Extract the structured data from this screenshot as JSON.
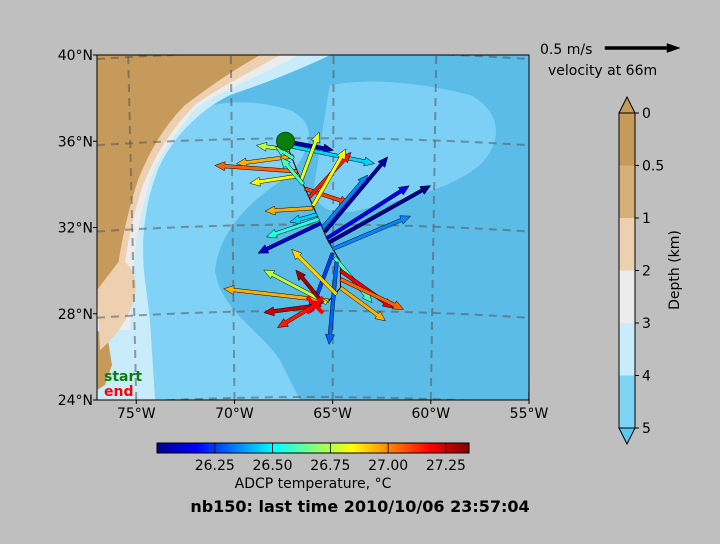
{
  "chart_data": {
    "type": "map-quiver",
    "title": "nb150: last time 2010/10/06 23:57:04",
    "map": {
      "lon_range": [
        -77,
        -55
      ],
      "lat_range": [
        24,
        40
      ],
      "x_ticks": [
        {
          "value": -75,
          "label": "75°W"
        },
        {
          "value": -70,
          "label": "70°W"
        },
        {
          "value": -65,
          "label": "65°W"
        },
        {
          "value": -60,
          "label": "60°W"
        },
        {
          "value": -55,
          "label": "55°W"
        }
      ],
      "y_ticks": [
        {
          "value": 24,
          "label": "24°N"
        },
        {
          "value": 28,
          "label": "28°N"
        },
        {
          "value": 32,
          "label": "32°N"
        },
        {
          "value": 36,
          "label": "36°N"
        },
        {
          "value": 40,
          "label": "40°N"
        }
      ],
      "graticule": "dashed"
    },
    "legend": {
      "start_label": "start",
      "end_label": "end",
      "start_color": "#0a7d0a",
      "end_color": "#ff0000",
      "placement": "bottom-left"
    },
    "reference_arrow": {
      "speed_label": "0.5 m/s",
      "depth_label": "velocity at 66m",
      "speed_m_s": 0.5
    },
    "depth_colorbar": {
      "label": "Depth (km)",
      "ticks": [
        "0",
        "0.5",
        "1",
        "2",
        "3",
        "4",
        "5"
      ],
      "colors": [
        "#c69a5a",
        "#d6ae78",
        "#ecd0b0",
        "#ececec",
        "#c9ecfb",
        "#7ed3f5"
      ]
    },
    "temperature_colorbar": {
      "label": "ADCP temperature, °C",
      "range": [
        26.0,
        27.35
      ],
      "ticks": [
        "26.25",
        "26.50",
        "26.75",
        "27.00",
        "27.25"
      ]
    },
    "start": {
      "lon": -67.4,
      "lat": 36.0
    },
    "end": {
      "lon": -65.9,
      "lat": 28.4
    },
    "track": [
      [
        -67.4,
        36.0
      ],
      [
        -66.8,
        34.6
      ],
      [
        -66.0,
        33.0
      ],
      [
        -65.3,
        31.5
      ],
      [
        -64.6,
        30.4
      ],
      [
        -64.6,
        29.2
      ],
      [
        -65.2,
        28.6
      ],
      [
        -65.9,
        28.4
      ]
    ],
    "vectors": [
      {
        "lon": -67.4,
        "lat": 36.0,
        "u": 0.32,
        "v": -0.06,
        "t": 26.05
      },
      {
        "lon": -67.3,
        "lat": 35.8,
        "u": 0.58,
        "v": -0.12,
        "t": 26.45
      },
      {
        "lon": -67.2,
        "lat": 35.6,
        "u": -0.22,
        "v": 0.03,
        "t": 26.75
      },
      {
        "lon": -67.0,
        "lat": 35.3,
        "u": -0.38,
        "v": -0.05,
        "t": 26.95
      },
      {
        "lon": -67.0,
        "lat": 35.2,
        "u": -0.12,
        "v": 0.08,
        "t": 26.6
      },
      {
        "lon": -66.8,
        "lat": 34.6,
        "u": -0.55,
        "v": 0.04,
        "t": 27.05
      },
      {
        "lon": -66.7,
        "lat": 34.4,
        "u": -0.33,
        "v": -0.05,
        "t": 26.85
      },
      {
        "lon": -66.6,
        "lat": 34.2,
        "u": 0.12,
        "v": 0.32,
        "t": 26.8
      },
      {
        "lon": -66.5,
        "lat": 34.0,
        "u": -0.15,
        "v": 0.18,
        "t": 26.6
      },
      {
        "lon": -66.4,
        "lat": 33.8,
        "u": 0.3,
        "v": -0.1,
        "t": 27.1
      },
      {
        "lon": -66.2,
        "lat": 33.4,
        "u": 0.28,
        "v": 0.3,
        "t": 27.15
      },
      {
        "lon": -66.0,
        "lat": 33.0,
        "u": 0.22,
        "v": 0.38,
        "t": 26.85
      },
      {
        "lon": -66.0,
        "lat": 32.9,
        "u": -0.32,
        "v": -0.02,
        "t": 26.95
      },
      {
        "lon": -65.8,
        "lat": 32.6,
        "u": -0.18,
        "v": -0.05,
        "t": 26.45
      },
      {
        "lon": -65.7,
        "lat": 32.4,
        "u": -0.35,
        "v": -0.12,
        "t": 26.55
      },
      {
        "lon": -65.6,
        "lat": 32.2,
        "u": -0.42,
        "v": -0.2,
        "t": 26.1
      },
      {
        "lon": -65.5,
        "lat": 32.0,
        "u": 0.3,
        "v": 0.35,
        "t": 26.35
      },
      {
        "lon": -65.4,
        "lat": 31.8,
        "u": 0.42,
        "v": 0.5,
        "t": 26.05
      },
      {
        "lon": -65.3,
        "lat": 31.5,
        "u": 0.55,
        "v": 0.35,
        "t": 26.15
      },
      {
        "lon": -65.2,
        "lat": 31.3,
        "u": 0.68,
        "v": 0.38,
        "t": 26.02
      },
      {
        "lon": -65.0,
        "lat": 31.0,
        "u": 0.52,
        "v": 0.22,
        "t": 26.35
      },
      {
        "lon": -65.0,
        "lat": 30.8,
        "u": -0.15,
        "v": -0.4,
        "t": 26.25
      },
      {
        "lon": -64.9,
        "lat": 30.6,
        "u": 0.25,
        "v": -0.3,
        "t": 26.6
      },
      {
        "lon": -64.8,
        "lat": 30.4,
        "u": -0.05,
        "v": -0.55,
        "t": 26.3
      },
      {
        "lon": -64.6,
        "lat": 30.0,
        "u": 0.35,
        "v": -0.25,
        "t": 27.2
      },
      {
        "lon": -64.6,
        "lat": 29.6,
        "u": 0.42,
        "v": -0.2,
        "t": 27.05
      },
      {
        "lon": -64.6,
        "lat": 29.2,
        "u": 0.3,
        "v": -0.22,
        "t": 26.95
      },
      {
        "lon": -64.8,
        "lat": 28.9,
        "u": -0.3,
        "v": 0.3,
        "t": 26.9
      },
      {
        "lon": -65.2,
        "lat": 28.6,
        "u": -0.7,
        "v": 0.08,
        "t": 26.95
      },
      {
        "lon": -65.3,
        "lat": 28.5,
        "u": -0.42,
        "v": 0.22,
        "t": 26.75
      },
      {
        "lon": -65.5,
        "lat": 28.5,
        "u": -0.18,
        "v": 0.22,
        "t": 27.3
      },
      {
        "lon": -65.6,
        "lat": 28.4,
        "u": -0.38,
        "v": -0.05,
        "t": 27.25
      },
      {
        "lon": -65.9,
        "lat": 28.4,
        "u": -0.25,
        "v": -0.15,
        "t": 27.15
      }
    ]
  }
}
